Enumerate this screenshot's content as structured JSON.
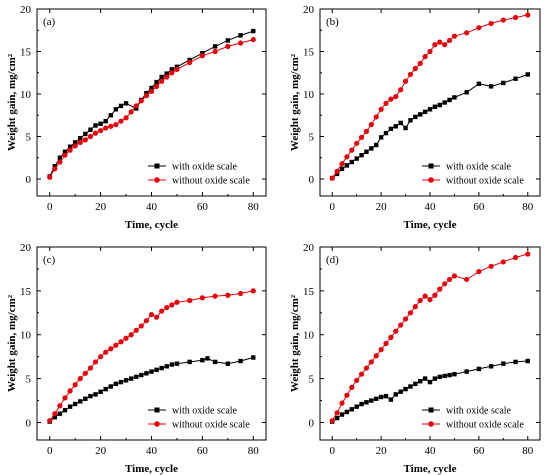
{
  "chart_data": [
    {
      "type": "line",
      "panel_label": "(a)",
      "xlabel": "Time, cycle",
      "ylabel": "Weight gain, mg/cm²",
      "xlim": [
        -5,
        85
      ],
      "ylim": [
        -2,
        20
      ],
      "xticks": [
        0,
        20,
        40,
        60,
        80
      ],
      "yticks": [
        0,
        5,
        10,
        15,
        20
      ],
      "legend_position": "bottom-right",
      "series": [
        {
          "name": "with oxide scale",
          "color": "#000000",
          "marker": "square",
          "x": [
            0,
            2,
            4,
            6,
            8,
            10,
            12,
            14,
            16,
            18,
            20,
            22,
            24,
            26,
            28,
            30,
            34,
            36,
            38,
            40,
            42,
            44,
            46,
            48,
            50,
            55,
            60,
            65,
            70,
            75,
            80
          ],
          "y": [
            0.3,
            1.5,
            2.5,
            3.2,
            3.8,
            4.3,
            4.8,
            5.3,
            5.8,
            6.3,
            6.5,
            6.8,
            7.5,
            8.2,
            8.6,
            8.9,
            8.3,
            9.3,
            10.1,
            10.7,
            11.4,
            12.0,
            12.4,
            12.9,
            13.2,
            14.0,
            14.8,
            15.6,
            16.3,
            16.9,
            17.4
          ]
        },
        {
          "name": "without oxide scale",
          "color": "#e8000b",
          "marker": "circle",
          "x": [
            0,
            2,
            4,
            6,
            8,
            10,
            12,
            14,
            16,
            18,
            20,
            22,
            24,
            26,
            28,
            30,
            32,
            34,
            36,
            38,
            40,
            42,
            44,
            46,
            48,
            50,
            55,
            60,
            65,
            70,
            75,
            80
          ],
          "y": [
            0.2,
            1.2,
            2.0,
            2.8,
            3.4,
            3.9,
            4.3,
            4.6,
            5.0,
            5.4,
            5.7,
            6.0,
            6.2,
            6.4,
            6.8,
            7.2,
            7.9,
            8.6,
            9.2,
            9.8,
            10.3,
            10.9,
            11.5,
            12.0,
            12.5,
            12.9,
            13.7,
            14.5,
            15.0,
            15.6,
            16.0,
            16.4
          ]
        }
      ]
    },
    {
      "type": "line",
      "panel_label": "(b)",
      "xlabel": "Time, cycle",
      "ylabel": "Weight gain, mg/cm²",
      "xlim": [
        -5,
        85
      ],
      "ylim": [
        -2,
        20
      ],
      "xticks": [
        0,
        20,
        40,
        60,
        80
      ],
      "yticks": [
        0,
        5,
        10,
        15,
        20
      ],
      "legend_position": "bottom-right",
      "series": [
        {
          "name": "with oxide scale",
          "color": "#000000",
          "marker": "square",
          "x": [
            0,
            2,
            4,
            6,
            8,
            10,
            12,
            14,
            16,
            18,
            20,
            22,
            24,
            26,
            28,
            30,
            32,
            34,
            36,
            38,
            40,
            42,
            44,
            46,
            48,
            50,
            55,
            60,
            65,
            70,
            75,
            80
          ],
          "y": [
            0.1,
            0.6,
            1.2,
            1.6,
            2.0,
            2.4,
            2.8,
            3.2,
            3.6,
            4.0,
            4.9,
            5.4,
            5.9,
            6.2,
            6.6,
            6.0,
            6.9,
            7.3,
            7.6,
            7.9,
            8.2,
            8.5,
            8.7,
            9.0,
            9.3,
            9.6,
            10.2,
            11.2,
            10.9,
            11.3,
            11.8,
            12.3
          ]
        },
        {
          "name": "without oxide scale",
          "color": "#e8000b",
          "marker": "circle",
          "x": [
            0,
            2,
            4,
            6,
            8,
            10,
            12,
            14,
            16,
            18,
            20,
            22,
            24,
            26,
            28,
            30,
            32,
            34,
            36,
            38,
            40,
            42,
            44,
            46,
            48,
            50,
            55,
            60,
            65,
            70,
            75,
            80
          ],
          "y": [
            0.1,
            0.9,
            1.8,
            2.6,
            3.4,
            4.2,
            4.9,
            5.6,
            6.4,
            7.3,
            8.2,
            8.9,
            9.4,
            9.7,
            10.5,
            11.5,
            12.3,
            13.0,
            13.6,
            14.4,
            15.0,
            15.8,
            16.1,
            15.8,
            16.3,
            16.8,
            17.2,
            17.8,
            18.3,
            18.7,
            19.0,
            19.3
          ]
        }
      ]
    },
    {
      "type": "line",
      "panel_label": "(c)",
      "xlabel": "Time, cycle",
      "ylabel": "Weight gain, mg/cm²",
      "xlim": [
        -5,
        85
      ],
      "ylim": [
        -2,
        20
      ],
      "xticks": [
        0,
        20,
        40,
        60,
        80
      ],
      "yticks": [
        0,
        5,
        10,
        15,
        20
      ],
      "legend_position": "bottom-right",
      "series": [
        {
          "name": "with oxide scale",
          "color": "#000000",
          "marker": "square",
          "x": [
            0,
            2,
            4,
            6,
            8,
            10,
            12,
            14,
            16,
            18,
            20,
            22,
            24,
            26,
            28,
            30,
            32,
            34,
            36,
            38,
            40,
            42,
            44,
            46,
            48,
            50,
            55,
            60,
            62,
            65,
            70,
            75,
            80
          ],
          "y": [
            0.1,
            0.6,
            1.0,
            1.4,
            1.8,
            2.1,
            2.4,
            2.7,
            3.0,
            3.2,
            3.5,
            3.8,
            4.1,
            4.4,
            4.6,
            4.8,
            5.0,
            5.2,
            5.4,
            5.6,
            5.8,
            6.0,
            6.2,
            6.4,
            6.6,
            6.7,
            6.9,
            7.1,
            7.3,
            6.9,
            6.7,
            7.0,
            7.4
          ]
        },
        {
          "name": "without oxide scale",
          "color": "#e8000b",
          "marker": "circle",
          "x": [
            0,
            2,
            4,
            6,
            8,
            10,
            12,
            14,
            16,
            18,
            20,
            22,
            24,
            26,
            28,
            30,
            32,
            34,
            36,
            38,
            40,
            42,
            44,
            46,
            48,
            50,
            55,
            60,
            65,
            70,
            75,
            80
          ],
          "y": [
            0.2,
            1.0,
            1.9,
            2.8,
            3.6,
            4.3,
            5.0,
            5.6,
            6.2,
            6.9,
            7.5,
            8.0,
            8.4,
            8.8,
            9.2,
            9.6,
            10.0,
            10.5,
            11.0,
            11.6,
            12.3,
            12.0,
            12.7,
            13.1,
            13.4,
            13.7,
            13.9,
            14.2,
            14.4,
            14.5,
            14.7,
            15.0
          ]
        }
      ]
    },
    {
      "type": "line",
      "panel_label": "(d)",
      "xlabel": "Time, cycle",
      "ylabel": "Weight gain, mg/cm²",
      "xlim": [
        -5,
        85
      ],
      "ylim": [
        -2,
        20
      ],
      "xticks": [
        0,
        20,
        40,
        60,
        80
      ],
      "yticks": [
        0,
        5,
        10,
        15,
        20
      ],
      "legend_position": "bottom-right",
      "series": [
        {
          "name": "with oxide scale",
          "color": "#000000",
          "marker": "square",
          "x": [
            0,
            2,
            4,
            6,
            8,
            10,
            12,
            14,
            16,
            18,
            20,
            22,
            24,
            26,
            28,
            30,
            32,
            34,
            36,
            38,
            40,
            42,
            44,
            46,
            48,
            50,
            55,
            60,
            65,
            70,
            75,
            80
          ],
          "y": [
            0.1,
            0.5,
            0.9,
            1.2,
            1.5,
            1.8,
            2.1,
            2.3,
            2.5,
            2.7,
            2.9,
            3.0,
            2.6,
            3.2,
            3.5,
            3.8,
            4.1,
            4.4,
            4.7,
            5.0,
            4.6,
            5.0,
            5.2,
            5.3,
            5.4,
            5.5,
            5.8,
            6.1,
            6.4,
            6.7,
            6.9,
            7.0
          ]
        },
        {
          "name": "without oxide scale",
          "color": "#e8000b",
          "marker": "circle",
          "x": [
            0,
            2,
            4,
            6,
            8,
            10,
            12,
            14,
            16,
            18,
            20,
            22,
            24,
            26,
            28,
            30,
            32,
            34,
            36,
            38,
            40,
            42,
            44,
            46,
            48,
            50,
            55,
            60,
            65,
            70,
            75,
            80
          ],
          "y": [
            0.2,
            1.1,
            2.2,
            3.1,
            4.0,
            4.8,
            5.5,
            6.2,
            6.9,
            7.6,
            8.3,
            9.0,
            9.7,
            10.4,
            11.1,
            11.8,
            12.5,
            13.2,
            13.9,
            14.4,
            14.0,
            14.5,
            15.2,
            15.8,
            16.3,
            16.7,
            16.3,
            17.2,
            17.8,
            18.3,
            18.8,
            19.2
          ]
        }
      ]
    }
  ]
}
